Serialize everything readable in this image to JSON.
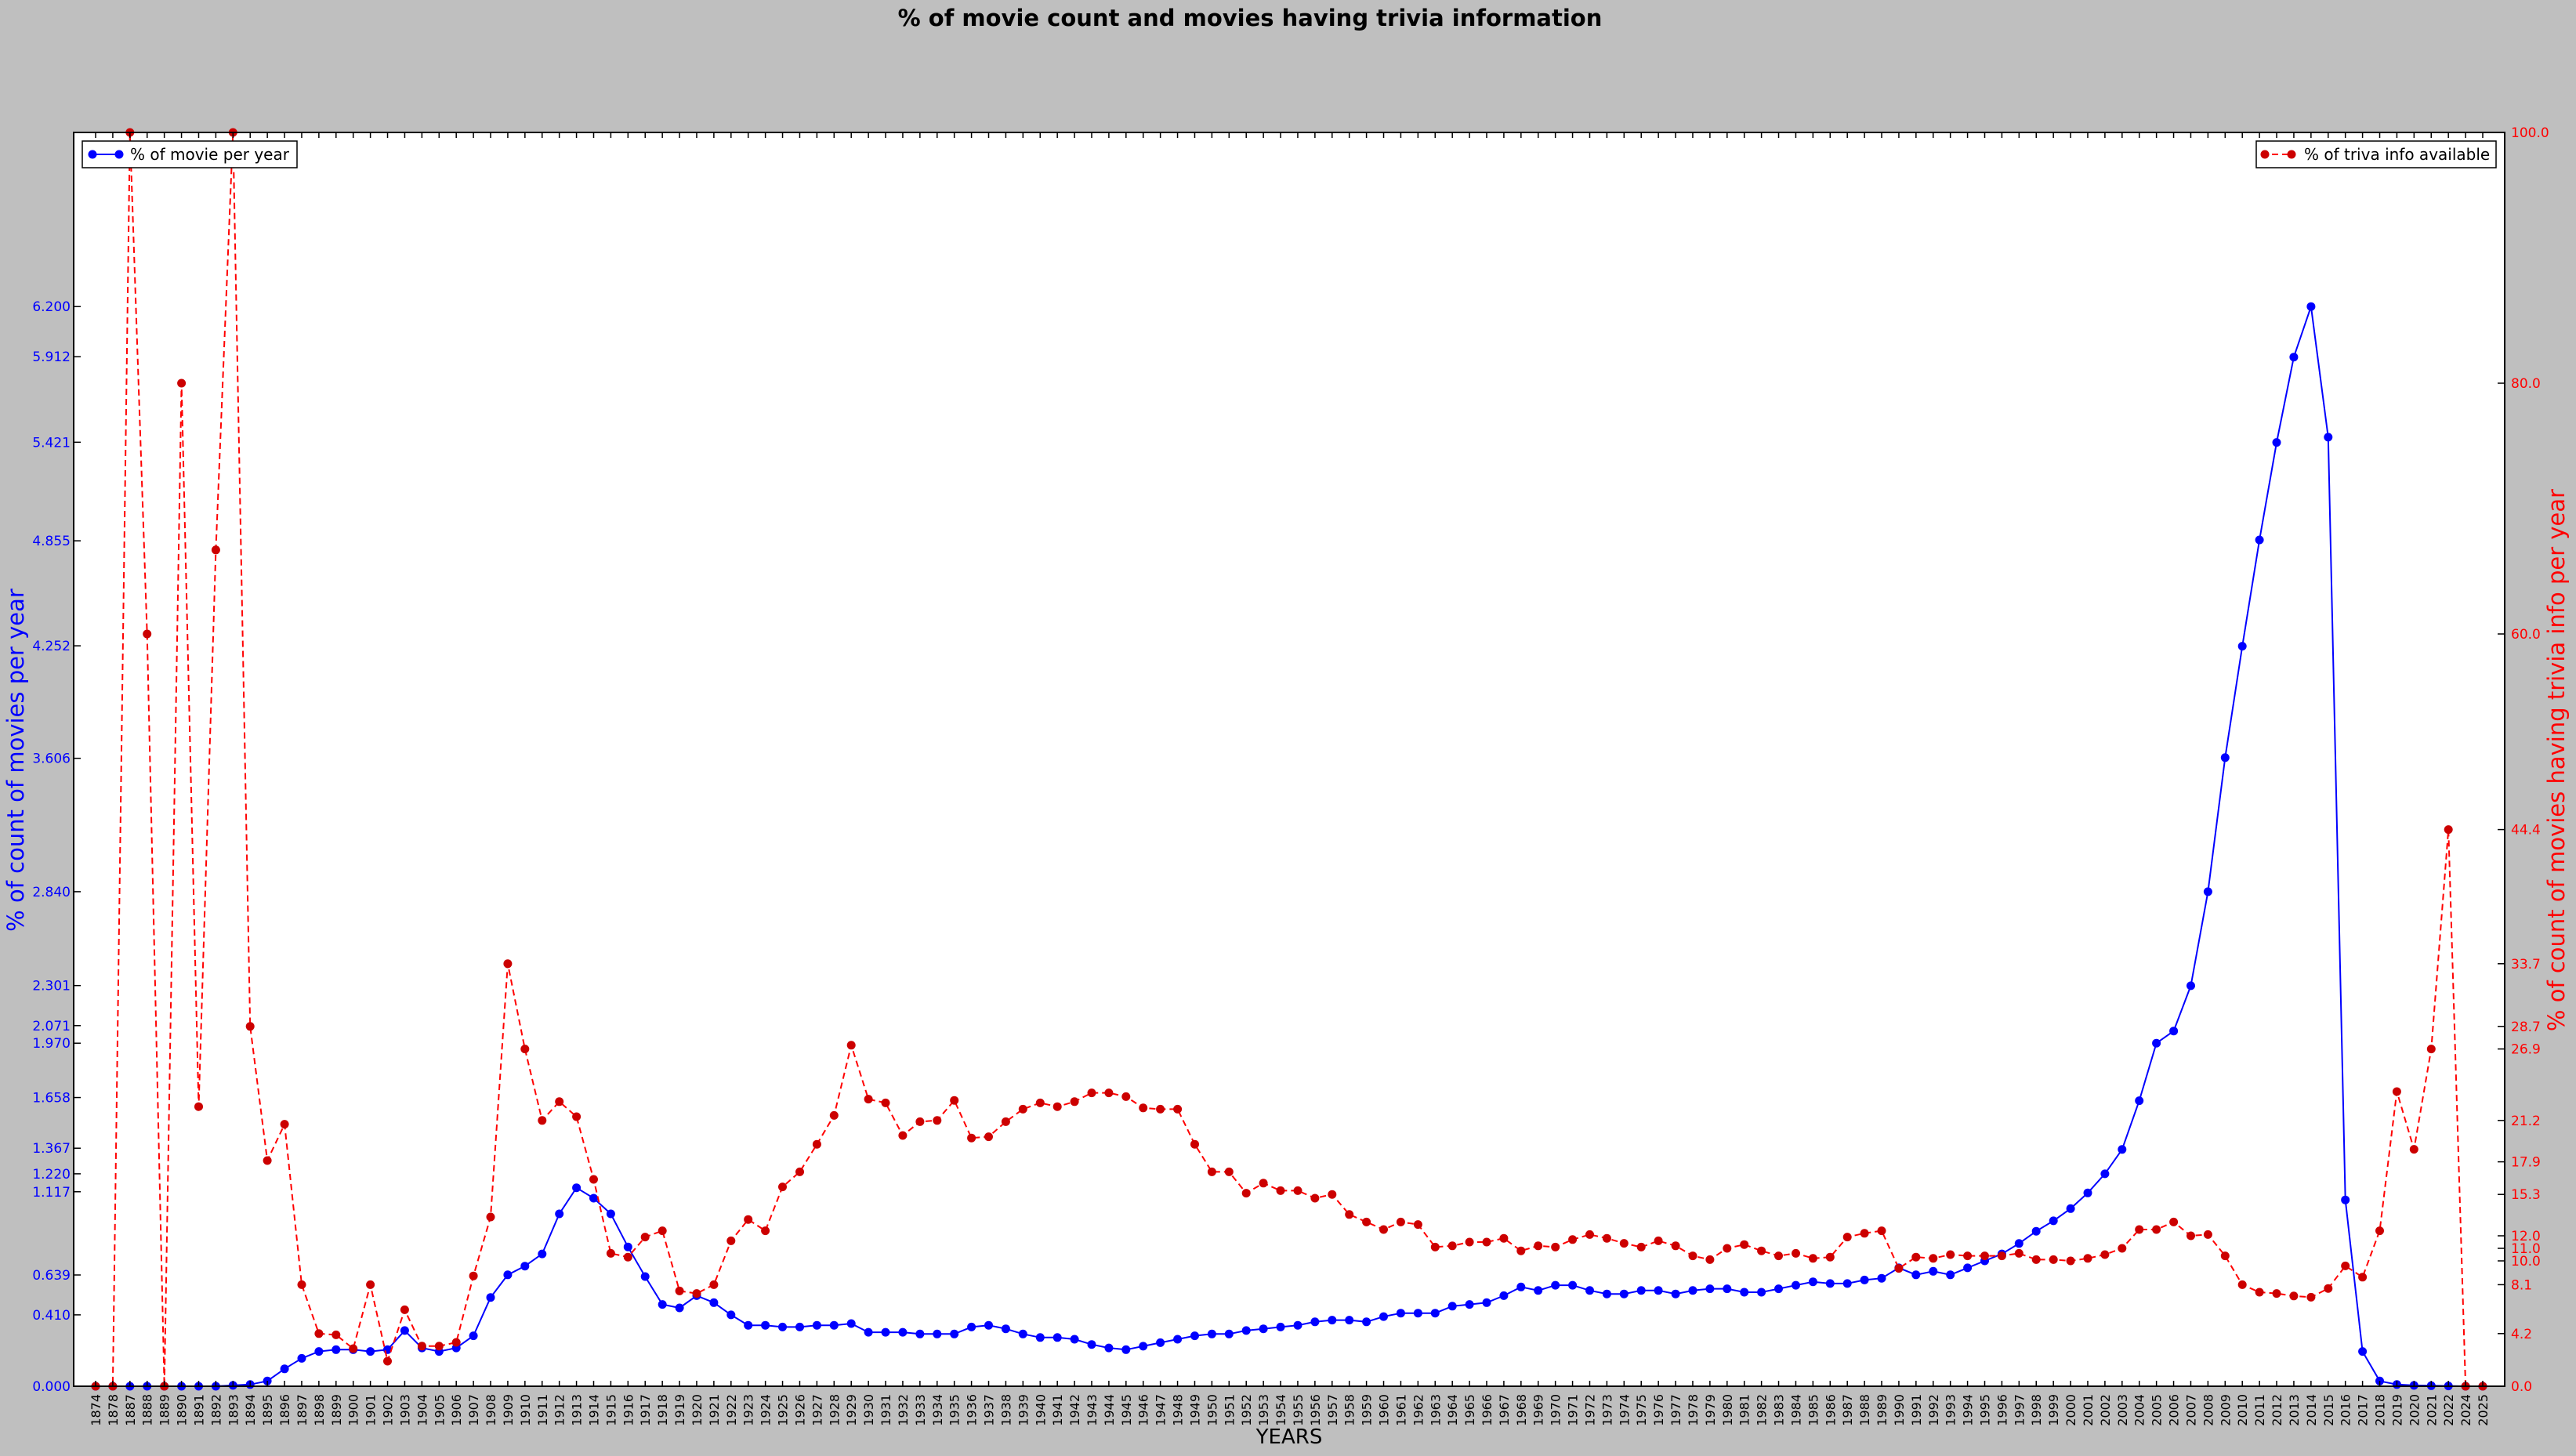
{
  "chart_data": {
    "type": "line",
    "title": "% of movie count and movies having trivia information",
    "xlabel": "YEARS",
    "ylabel_left": "% of count of movies per year",
    "ylabel_right": "% of count of movies having trivia info per year",
    "ylim_left": [
      0,
      7.2
    ],
    "ylim_right": [
      0,
      100
    ],
    "grid": false,
    "yticks_left": [
      "0.000",
      "0.410",
      "0.639",
      "1.117",
      "1.220",
      "1.367",
      "1.658",
      "1.970",
      "2.071",
      "2.301",
      "2.840",
      "3.606",
      "4.252",
      "4.855",
      "5.421",
      "5.912",
      "6.200"
    ],
    "yticks_right": [
      "0.0",
      "4.2",
      "8.1",
      "10.0",
      "11.0",
      "12.0",
      "15.3",
      "17.9",
      "21.2",
      "26.9",
      "28.7",
      "33.7",
      "44.4",
      "60.0",
      "80.0",
      "100.0"
    ],
    "x": [
      "1874",
      "1878",
      "1887",
      "1888",
      "1889",
      "1890",
      "1891",
      "1892",
      "1893",
      "1894",
      "1895",
      "1896",
      "1897",
      "1898",
      "1899",
      "1900",
      "1901",
      "1902",
      "1903",
      "1904",
      "1905",
      "1906",
      "1907",
      "1908",
      "1909",
      "1910",
      "1911",
      "1912",
      "1913",
      "1914",
      "1915",
      "1916",
      "1917",
      "1918",
      "1919",
      "1920",
      "1921",
      "1922",
      "1923",
      "1924",
      "1925",
      "1926",
      "1927",
      "1928",
      "1929",
      "1930",
      "1931",
      "1932",
      "1933",
      "1934",
      "1935",
      "1936",
      "1937",
      "1938",
      "1939",
      "1940",
      "1941",
      "1942",
      "1943",
      "1944",
      "1945",
      "1946",
      "1947",
      "1948",
      "1949",
      "1950",
      "1951",
      "1952",
      "1953",
      "1954",
      "1955",
      "1956",
      "1957",
      "1958",
      "1959",
      "1960",
      "1961",
      "1962",
      "1963",
      "1964",
      "1965",
      "1966",
      "1967",
      "1968",
      "1969",
      "1970",
      "1971",
      "1972",
      "1973",
      "1974",
      "1975",
      "1976",
      "1977",
      "1978",
      "1979",
      "1980",
      "1981",
      "1982",
      "1983",
      "1984",
      "1985",
      "1986",
      "1987",
      "1988",
      "1989",
      "1990",
      "1991",
      "1992",
      "1993",
      "1994",
      "1995",
      "1996",
      "1997",
      "1998",
      "1999",
      "2000",
      "2001",
      "2002",
      "2003",
      "2004",
      "2005",
      "2006",
      "2007",
      "2008",
      "2009",
      "2010",
      "2011",
      "2012",
      "2013",
      "2014",
      "2015",
      "2016",
      "2017",
      "2018",
      "2019",
      "2020",
      "2021",
      "2022",
      "2024",
      "2025"
    ],
    "series": [
      {
        "name": "% of movie per year",
        "axis": "left",
        "color": "#0000ff",
        "style": "solid",
        "values": [
          0,
          0,
          0,
          0,
          0,
          0,
          0,
          0,
          0.005,
          0.01,
          0.03,
          0.1,
          0.16,
          0.2,
          0.21,
          0.21,
          0.2,
          0.21,
          0.32,
          0.22,
          0.2,
          0.22,
          0.29,
          0.51,
          0.64,
          0.69,
          0.76,
          0.99,
          1.14,
          1.08,
          0.99,
          0.8,
          0.63,
          0.47,
          0.45,
          0.52,
          0.48,
          0.41,
          0.35,
          0.35,
          0.34,
          0.34,
          0.35,
          0.35,
          0.36,
          0.31,
          0.31,
          0.31,
          0.3,
          0.3,
          0.3,
          0.34,
          0.35,
          0.33,
          0.3,
          0.28,
          0.28,
          0.27,
          0.24,
          0.22,
          0.21,
          0.23,
          0.25,
          0.27,
          0.29,
          0.3,
          0.3,
          0.32,
          0.33,
          0.34,
          0.35,
          0.37,
          0.38,
          0.38,
          0.37,
          0.4,
          0.42,
          0.42,
          0.42,
          0.46,
          0.47,
          0.48,
          0.52,
          0.57,
          0.55,
          0.58,
          0.58,
          0.55,
          0.53,
          0.53,
          0.55,
          0.55,
          0.53,
          0.55,
          0.56,
          0.56,
          0.54,
          0.54,
          0.56,
          0.58,
          0.6,
          0.59,
          0.59,
          0.61,
          0.62,
          0.68,
          0.64,
          0.66,
          0.64,
          0.68,
          0.72,
          0.76,
          0.82,
          0.89,
          0.95,
          1.02,
          1.11,
          1.22,
          1.36,
          1.64,
          1.97,
          2.04,
          2.3,
          2.84,
          3.61,
          4.25,
          4.86,
          5.42,
          5.91,
          6.2,
          5.45,
          1.07,
          0.2,
          0.03,
          0.01,
          0.005,
          0.003,
          0.002,
          0,
          0
        ]
      },
      {
        "name": "% of triva info available",
        "axis": "right",
        "color": "#ff0000",
        "style": "dashed",
        "values": [
          0,
          0,
          100,
          60,
          0,
          80,
          22.3,
          66.7,
          100,
          28.7,
          18,
          20.9,
          8.1,
          4.2,
          4.1,
          3,
          8.1,
          2,
          6.1,
          3.2,
          3.2,
          3.5,
          8.8,
          13.5,
          33.7,
          26.9,
          21.2,
          22.7,
          21.5,
          16.5,
          10.6,
          10.3,
          11.9,
          12.4,
          7.6,
          7.4,
          8.1,
          11.6,
          13.3,
          12.4,
          15.9,
          17.1,
          19.3,
          21.6,
          27.2,
          22.9,
          22.6,
          20,
          21.1,
          21.2,
          22.8,
          19.8,
          19.9,
          21.1,
          22.1,
          22.6,
          22.3,
          22.7,
          23.4,
          23.4,
          23.1,
          22.2,
          22.1,
          22.1,
          19.3,
          17.1,
          17.1,
          15.4,
          16.2,
          15.6,
          15.6,
          15,
          15.3,
          13.7,
          13.1,
          12.5,
          13.1,
          12.9,
          11.1,
          11.2,
          11.5,
          11.5,
          11.8,
          10.8,
          11.2,
          11.1,
          11.7,
          12.1,
          11.8,
          11.4,
          11.1,
          11.6,
          11.2,
          10.4,
          10.1,
          11,
          11.3,
          10.8,
          10.4,
          10.6,
          10.2,
          10.3,
          11.9,
          12.2,
          12.4,
          9.4,
          10.3,
          10.2,
          10.5,
          10.4,
          10.4,
          10.4,
          10.6,
          10.1,
          10.1,
          10,
          10.2,
          10.5,
          11,
          12.5,
          12.5,
          13.1,
          12,
          12.1,
          10.4,
          8.1,
          7.5,
          7.4,
          7.2,
          7.1,
          7.8,
          9.6,
          8.7,
          12.4,
          23.5,
          18.9,
          26.9,
          44.4,
          0,
          0
        ]
      }
    ],
    "legend_left_position": "top-left",
    "legend_right_position": "top-right"
  }
}
